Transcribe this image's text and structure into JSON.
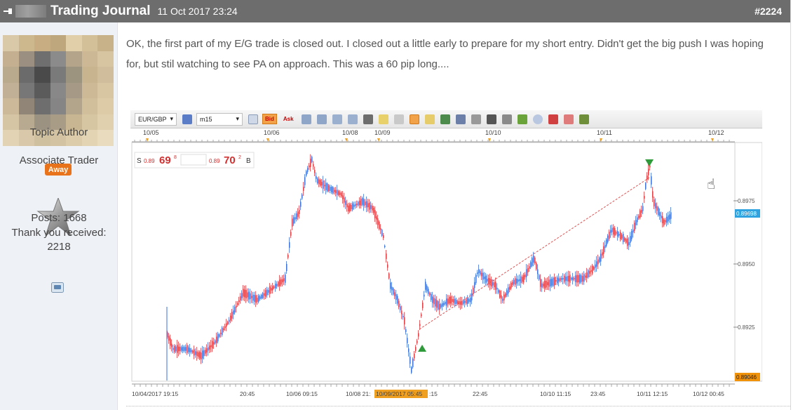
{
  "header": {
    "thread_title": "Trading Journal",
    "date": "11 Oct 2017 23:24",
    "post_number": "#2224"
  },
  "sidebar": {
    "role": "Topic Author",
    "status_badge": "Away",
    "rank_title": "Associate Trader",
    "posts": "Posts: 1668",
    "thanks_label": "Thank you received:",
    "thanks_count": "2218"
  },
  "post": {
    "text": "OK, the first part of my E/G trade is closed out. I closed out a little early to prepare for my short entry. Didn't get the big push I was hoping for, but stil watching to see PA on approach. This was a 60 pip long...."
  },
  "chart": {
    "symbol": "EUR/GBP",
    "timeframe": "m15",
    "bid_label": "Bid",
    "ask_label": "Ask",
    "sell_label": "S",
    "sell_small": "0.89",
    "sell_big": "69",
    "sell_sup": "8",
    "buy_small": "0.89",
    "buy_big": "70",
    "buy_sup": "2",
    "buy_label": "B",
    "top_dates": [
      "10/05",
      "10/06",
      "10/08",
      "10/09",
      "10/10",
      "10/11",
      "10/12"
    ],
    "bottom_labels": [
      "10/04/2017 19:15",
      "20:45",
      "10/06 09:15",
      "10/08 21:",
      "10/09/2017 05:45",
      ":15",
      "22:45",
      "10/10 11:15",
      "23:45",
      "10/11 12:15",
      "10/12 00:45"
    ],
    "price_labels": [
      "0.8975",
      "0.8950",
      "0.8925"
    ],
    "current_price": "0.89698",
    "low_price": "0.89046",
    "colors": {
      "up": "#3a6fd8",
      "down": "#e0393e",
      "trend": "#e05050",
      "current_tag": "#2fa3e0",
      "low_tag": "#f0920a"
    }
  }
}
